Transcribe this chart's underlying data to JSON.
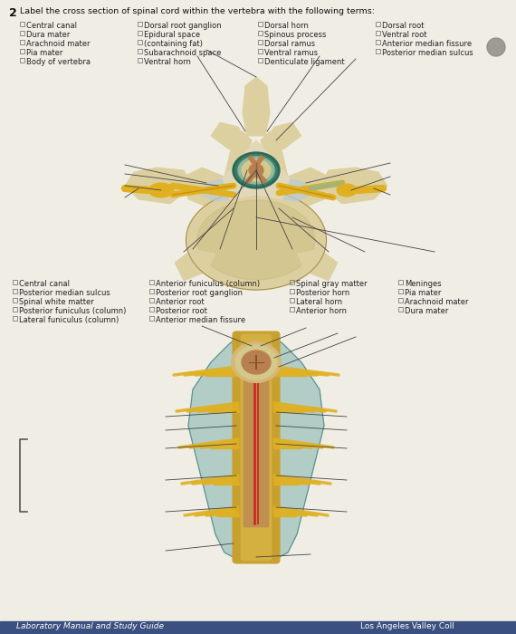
{
  "background_color": "#f0ede4",
  "title_number": "2",
  "title_text": "Label the cross section of spinal cord within the vertebra with the following terms:",
  "section1_cols": [
    [
      "Central canal",
      "Dura mater",
      "Arachnoid mater",
      "Pia mater",
      "Body of vertebra"
    ],
    [
      "Dorsal root ganglion",
      "Epidural space",
      "(containing fat)",
      "Subarachnoid space",
      "Ventral horn"
    ],
    [
      "Dorsal horn",
      "Spinous process",
      "Dorsal ramus",
      "Ventral ramus",
      "Denticulate ligament"
    ],
    [
      "Dorsal root",
      "Ventral root",
      "Anterior median fissure",
      "Posterior median sulcus",
      ""
    ]
  ],
  "section2_cols": [
    [
      "Central canal",
      "Posterior median sulcus",
      "Spinal white matter",
      "Posterior funiculus (column)",
      "Lateral funiculus (column)"
    ],
    [
      "Anterior funiculus (column)",
      "Posterior root ganglion",
      "Anterior root",
      "Posterior root",
      "Anterior median fissure"
    ],
    [
      "Spinal gray matter",
      "Posterior horn",
      "Lateral horn",
      "Anterior horn",
      ""
    ],
    [
      "Meninges",
      "Pia mater",
      "Arachnoid mater",
      "Dura mater",
      ""
    ]
  ],
  "footer_left": "Laboratory Manual and Study Guide",
  "footer_right": "Los Angeles Valley Coll",
  "bone_light": "#ddd0a0",
  "bone_mid": "#c8b878",
  "bone_dark": "#a89050",
  "nerve_yellow": "#e0b020",
  "nerve_dark": "#c89010",
  "teal_dark": "#2a6858",
  "teal_mid": "#3a8878",
  "blue_gray": "#b8ccd8",
  "cord_white": "#d4c88a",
  "cord_gray": "#c4a060",
  "gray_matter_color": "#b88050",
  "green_tint": "#8ab898",
  "dot_color": "#888880"
}
